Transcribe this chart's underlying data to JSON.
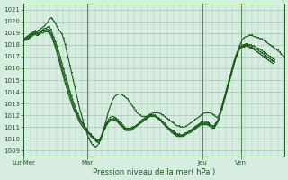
{
  "title": "",
  "xlabel": "Pression niveau de la mer( hPa )",
  "ylabel": "",
  "ylim": [
    1008.5,
    1021.5
  ],
  "yticks": [
    1009,
    1010,
    1011,
    1012,
    1013,
    1014,
    1015,
    1016,
    1017,
    1018,
    1019,
    1020,
    1021
  ],
  "xtick_labels": [
    "LunMer",
    "Mar",
    "Jeu",
    "Ven"
  ],
  "xtick_positions": [
    0,
    40,
    112,
    136
  ],
  "background_color": "#d8ede2",
  "grid_color": "#a0c8b0",
  "line_color": "#1a5c1a",
  "series": [
    [
      1018.5,
      1018.6,
      1018.7,
      1018.8,
      1018.9,
      1019.0,
      1019.1,
      1019.2,
      1019.1,
      1019.2,
      1019.3,
      1019.4,
      1019.5,
      1019.6,
      1019.8,
      1019.9,
      1020.2,
      1020.3,
      1020.2,
      1020.0,
      1019.8,
      1019.5,
      1019.3,
      1019.1,
      1018.9,
      1018.5,
      1018.0,
      1017.4,
      1016.8,
      1016.2,
      1015.6,
      1015.0,
      1014.4,
      1013.8,
      1013.2,
      1012.6,
      1012.1,
      1011.6,
      1011.1,
      1010.7,
      1010.3,
      1010.0,
      1009.7,
      1009.5,
      1009.4,
      1009.3,
      1009.4,
      1009.6,
      1009.9,
      1010.3,
      1010.8,
      1011.3,
      1011.8,
      1012.3,
      1012.7,
      1013.1,
      1013.4,
      1013.6,
      1013.7,
      1013.8,
      1013.8,
      1013.8,
      1013.7,
      1013.6,
      1013.5,
      1013.4,
      1013.2,
      1013.0,
      1012.8,
      1012.6,
      1012.4,
      1012.2,
      1012.1,
      1012.0,
      1011.9,
      1011.9,
      1011.9,
      1011.9,
      1012.0,
      1012.1,
      1012.1,
      1012.2,
      1012.2,
      1012.2,
      1012.2,
      1012.2,
      1012.1,
      1012.0,
      1011.9,
      1011.8,
      1011.7,
      1011.6,
      1011.5,
      1011.4,
      1011.3,
      1011.2,
      1011.1,
      1011.1,
      1011.0,
      1011.0,
      1011.0,
      1011.0,
      1011.1,
      1011.2,
      1011.3,
      1011.4,
      1011.5,
      1011.6,
      1011.7,
      1011.8,
      1011.9,
      1012.0,
      1012.1,
      1012.2,
      1012.2,
      1012.2,
      1012.2,
      1012.2,
      1012.1,
      1012.0,
      1011.9,
      1011.8,
      1012.0,
      1012.2,
      1012.5,
      1013.0,
      1013.5,
      1014.0,
      1014.5,
      1015.0,
      1015.5,
      1016.0,
      1016.5,
      1017.0,
      1017.5,
      1017.9,
      1018.2,
      1018.5,
      1018.6,
      1018.7,
      1018.7,
      1018.8,
      1018.8,
      1018.8,
      1018.7,
      1018.7,
      1018.6,
      1018.6,
      1018.5,
      1018.5,
      1018.4,
      1018.3,
      1018.2,
      1018.1,
      1018.0,
      1017.9,
      1017.8,
      1017.7,
      1017.6,
      1017.5,
      1017.4,
      1017.2,
      1017.1,
      1017.0
    ],
    [
      1018.5,
      1018.5,
      1018.6,
      1018.7,
      1018.8,
      1018.9,
      1019.0,
      1019.1,
      1019.0,
      1019.0,
      1019.1,
      1019.2,
      1019.3,
      1019.4,
      1019.4,
      1019.5,
      1019.5,
      1019.3,
      1018.9,
      1018.6,
      1018.2,
      1017.8,
      1017.4,
      1016.9,
      1016.4,
      1015.9,
      1015.4,
      1015.0,
      1014.5,
      1014.0,
      1013.6,
      1013.2,
      1012.8,
      1012.4,
      1012.1,
      1011.8,
      1011.5,
      1011.3,
      1011.1,
      1010.9,
      1010.7,
      1010.5,
      1010.4,
      1010.2,
      1010.1,
      1010.0,
      1009.9,
      1009.9,
      1010.1,
      1010.4,
      1010.8,
      1011.1,
      1011.4,
      1011.6,
      1011.8,
      1011.9,
      1011.9,
      1011.8,
      1011.7,
      1011.6,
      1011.4,
      1011.3,
      1011.2,
      1011.0,
      1010.9,
      1010.9,
      1010.9,
      1010.9,
      1011.0,
      1011.0,
      1011.1,
      1011.2,
      1011.3,
      1011.5,
      1011.6,
      1011.7,
      1011.8,
      1011.9,
      1012.0,
      1012.0,
      1012.0,
      1012.0,
      1012.0,
      1011.9,
      1011.8,
      1011.7,
      1011.6,
      1011.4,
      1011.3,
      1011.2,
      1011.0,
      1010.9,
      1010.8,
      1010.7,
      1010.6,
      1010.5,
      1010.4,
      1010.4,
      1010.3,
      1010.3,
      1010.4,
      1010.5,
      1010.5,
      1010.6,
      1010.7,
      1010.8,
      1010.9,
      1011.0,
      1011.1,
      1011.2,
      1011.3,
      1011.4,
      1011.4,
      1011.4,
      1011.4,
      1011.4,
      1011.3,
      1011.2,
      1011.1,
      1011.1,
      1011.3,
      1011.5,
      1011.8,
      1012.3,
      1012.8,
      1013.3,
      1013.8,
      1014.3,
      1014.8,
      1015.3,
      1015.8,
      1016.3,
      1016.8,
      1017.2,
      1017.5,
      1017.8,
      1017.9,
      1018.0,
      1018.0,
      1018.1,
      1018.1,
      1018.0,
      1018.0,
      1017.9,
      1017.9,
      1017.8,
      1017.7,
      1017.7,
      1017.6,
      1017.5,
      1017.4,
      1017.3,
      1017.2,
      1017.1,
      1017.0,
      1016.9,
      1016.8,
      1016.7
    ],
    [
      1018.4,
      1018.5,
      1018.5,
      1018.6,
      1018.7,
      1018.8,
      1018.9,
      1019.0,
      1018.9,
      1018.9,
      1019.0,
      1019.1,
      1019.2,
      1019.2,
      1019.3,
      1019.3,
      1019.2,
      1019.0,
      1018.7,
      1018.3,
      1017.9,
      1017.5,
      1017.0,
      1016.5,
      1016.0,
      1015.5,
      1015.0,
      1014.6,
      1014.1,
      1013.7,
      1013.3,
      1012.9,
      1012.5,
      1012.2,
      1011.9,
      1011.6,
      1011.4,
      1011.2,
      1011.0,
      1010.8,
      1010.6,
      1010.5,
      1010.3,
      1010.2,
      1010.0,
      1009.9,
      1009.8,
      1009.8,
      1010.0,
      1010.3,
      1010.7,
      1011.0,
      1011.3,
      1011.5,
      1011.6,
      1011.7,
      1011.7,
      1011.7,
      1011.6,
      1011.4,
      1011.3,
      1011.2,
      1011.0,
      1010.9,
      1010.8,
      1010.8,
      1010.8,
      1010.8,
      1010.9,
      1011.0,
      1011.1,
      1011.2,
      1011.3,
      1011.4,
      1011.5,
      1011.6,
      1011.7,
      1011.8,
      1011.9,
      1012.0,
      1012.0,
      1012.0,
      1011.9,
      1011.9,
      1011.8,
      1011.7,
      1011.5,
      1011.4,
      1011.2,
      1011.1,
      1011.0,
      1010.8,
      1010.7,
      1010.6,
      1010.5,
      1010.4,
      1010.3,
      1010.3,
      1010.3,
      1010.3,
      1010.3,
      1010.4,
      1010.5,
      1010.5,
      1010.6,
      1010.7,
      1010.8,
      1010.9,
      1011.0,
      1011.1,
      1011.2,
      1011.3,
      1011.3,
      1011.3,
      1011.3,
      1011.3,
      1011.2,
      1011.1,
      1011.0,
      1011.0,
      1011.2,
      1011.4,
      1011.7,
      1012.2,
      1012.7,
      1013.2,
      1013.7,
      1014.2,
      1014.7,
      1015.2,
      1015.7,
      1016.2,
      1016.7,
      1017.1,
      1017.4,
      1017.7,
      1017.8,
      1017.9,
      1017.9,
      1018.0,
      1018.0,
      1017.9,
      1017.8,
      1017.8,
      1017.7,
      1017.6,
      1017.6,
      1017.5,
      1017.4,
      1017.3,
      1017.2,
      1017.1,
      1017.0,
      1016.9,
      1016.8,
      1016.7,
      1016.6,
      1016.5
    ],
    [
      1018.3,
      1018.4,
      1018.4,
      1018.5,
      1018.6,
      1018.7,
      1018.8,
      1018.9,
      1018.8,
      1018.8,
      1018.9,
      1019.0,
      1019.0,
      1019.1,
      1019.1,
      1019.1,
      1019.0,
      1018.8,
      1018.5,
      1018.1,
      1017.7,
      1017.2,
      1016.7,
      1016.2,
      1015.7,
      1015.2,
      1014.7,
      1014.3,
      1013.8,
      1013.4,
      1013.0,
      1012.6,
      1012.3,
      1012.0,
      1011.7,
      1011.4,
      1011.2,
      1011.0,
      1010.8,
      1010.7,
      1010.5,
      1010.4,
      1010.2,
      1010.1,
      1010.0,
      1009.8,
      1009.7,
      1009.7,
      1009.9,
      1010.2,
      1010.6,
      1010.9,
      1011.2,
      1011.4,
      1011.5,
      1011.6,
      1011.6,
      1011.6,
      1011.5,
      1011.4,
      1011.2,
      1011.1,
      1011.0,
      1010.8,
      1010.7,
      1010.7,
      1010.7,
      1010.7,
      1010.8,
      1010.9,
      1011.0,
      1011.1,
      1011.2,
      1011.3,
      1011.4,
      1011.5,
      1011.6,
      1011.7,
      1011.8,
      1011.9,
      1011.9,
      1011.9,
      1011.9,
      1011.8,
      1011.7,
      1011.6,
      1011.5,
      1011.3,
      1011.2,
      1011.0,
      1010.9,
      1010.8,
      1010.6,
      1010.5,
      1010.4,
      1010.3,
      1010.2,
      1010.2,
      1010.2,
      1010.2,
      1010.2,
      1010.3,
      1010.4,
      1010.5,
      1010.5,
      1010.6,
      1010.7,
      1010.8,
      1010.9,
      1011.0,
      1011.1,
      1011.2,
      1011.2,
      1011.2,
      1011.2,
      1011.2,
      1011.1,
      1011.0,
      1010.9,
      1010.9,
      1011.1,
      1011.3,
      1011.6,
      1012.1,
      1012.6,
      1013.1,
      1013.6,
      1014.1,
      1014.6,
      1015.1,
      1015.6,
      1016.1,
      1016.6,
      1017.0,
      1017.3,
      1017.6,
      1017.7,
      1017.8,
      1017.8,
      1017.9,
      1017.9,
      1017.8,
      1017.7,
      1017.7,
      1017.6,
      1017.5,
      1017.4,
      1017.3,
      1017.2,
      1017.1,
      1017.0,
      1016.9,
      1016.8,
      1016.7,
      1016.6,
      1016.5,
      1016.4
    ]
  ],
  "line_width": 0.8
}
